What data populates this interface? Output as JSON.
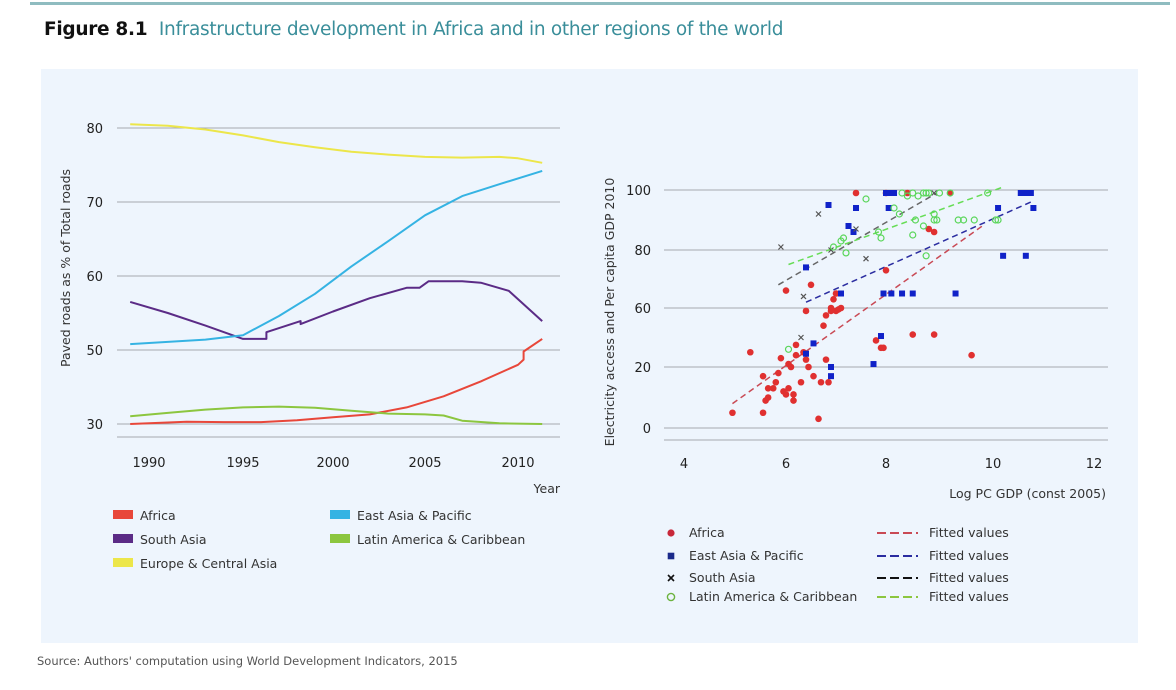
{
  "figure": {
    "number": "Figure 8.1",
    "title": "Infrastructure development in Africa and in other regions of the world",
    "source": "Source: Authors' computation using World Development Indicators, 2015"
  },
  "chart_data": [
    {
      "type": "line",
      "title": "",
      "xlabel": "Year",
      "ylabel": "Paved roads as % of Total roads",
      "xlim": [
        1989,
        2011.3
      ],
      "y_ticks": [
        30,
        50,
        60,
        70,
        80
      ],
      "x_ticks": [
        1990,
        1995,
        2000,
        2005,
        2010
      ],
      "x_tick_labels": [
        "1990",
        "1995",
        "2000",
        "2005",
        "2010"
      ],
      "y_tick_labels": [
        "30",
        "50",
        "60",
        "70",
        "80"
      ],
      "grid": true,
      "legend_position": "bottom",
      "series": [
        {
          "name": "Africa",
          "color": "#e8473a",
          "x": [
            1989,
            1990,
            1992,
            1994,
            1996,
            1998,
            2000,
            2002,
            2004,
            2006,
            2008,
            2010,
            2010.3,
            2010.3,
            2011.3
          ],
          "values": [
            30,
            30.2,
            30.6,
            30.5,
            30.5,
            31,
            31.8,
            32.6,
            34.5,
            37.5,
            41.5,
            46,
            47.4,
            49.6,
            51.5
          ]
        },
        {
          "name": "South Asia",
          "color": "#5b2b86",
          "x": [
            1989,
            1991,
            1993,
            1995,
            1996.3,
            1996.3,
            1998.2,
            1998.2,
            2000,
            2002,
            2004,
            2004.7,
            2005.2,
            2007,
            2008,
            2009.5,
            2011.3
          ],
          "values": [
            56.5,
            55,
            53.3,
            51.5,
            51.5,
            52.4,
            53.9,
            53.5,
            55.2,
            57,
            58.4,
            58.4,
            59.3,
            59.3,
            59.1,
            58,
            53.9
          ]
        },
        {
          "name": "Europe & Central Asia",
          "color": "#ece64a",
          "x": [
            1989,
            1991,
            1993,
            1995,
            1997,
            1999,
            2001,
            2003,
            2005,
            2007,
            2009,
            2010,
            2011.3
          ],
          "values": [
            80.5,
            80.3,
            79.8,
            79,
            78.1,
            77.4,
            76.8,
            76.4,
            76.1,
            76,
            76.1,
            75.9,
            75.3
          ]
        },
        {
          "name": "East Asia & Pacific",
          "color": "#35b3e3",
          "x": [
            1989,
            1991,
            1993,
            1995,
            1997,
            1999,
            2001,
            2003,
            2005,
            2007,
            2009,
            2011.3
          ],
          "values": [
            50.8,
            51.1,
            51.4,
            52,
            54.6,
            57.6,
            61.3,
            64.7,
            68.2,
            70.8,
            72.4,
            74.2
          ]
        },
        {
          "name": "Latin America & Caribbean",
          "color": "#8cc63f",
          "x": [
            1989,
            1991,
            1993,
            1995,
            1997,
            1999,
            2001,
            2003,
            2005,
            2006,
            2007,
            2009,
            2011.3
          ],
          "values": [
            32.1,
            33,
            33.9,
            34.5,
            34.7,
            34.4,
            33.6,
            32.8,
            32.6,
            32.3,
            30.9,
            30.2,
            30
          ]
        }
      ]
    },
    {
      "type": "scatter",
      "title": "",
      "xlabel": "Log PC GDP (const 2005)",
      "ylabel": "Electricity access and Per capita GDP 2010",
      "xlim": [
        3.6,
        12.3
      ],
      "x_ticks": [
        4,
        6,
        8,
        10,
        12
      ],
      "x_tick_labels": [
        "4",
        "6",
        "8",
        "10",
        "12"
      ],
      "y_ticks": [
        0,
        20,
        60,
        80,
        100
      ],
      "y_tick_labels": [
        "0",
        "20",
        "60",
        "80",
        "100"
      ],
      "grid": true,
      "legend_position": "bottom",
      "series": [
        {
          "name": "Africa",
          "marker": "circle",
          "color": "#e03030",
          "points": [
            [
              4.95,
              5
            ],
            [
              5.3,
              30
            ],
            [
              5.55,
              5
            ],
            [
              5.55,
              17
            ],
            [
              5.6,
              9
            ],
            [
              5.65,
              10
            ],
            [
              5.65,
              13
            ],
            [
              5.75,
              13
            ],
            [
              5.8,
              15
            ],
            [
              5.85,
              18
            ],
            [
              5.9,
              26
            ],
            [
              5.95,
              12
            ],
            [
              6.0,
              11
            ],
            [
              6.05,
              13
            ],
            [
              6.05,
              22
            ],
            [
              6.1,
              20
            ],
            [
              6.15,
              9
            ],
            [
              6.15,
              11
            ],
            [
              6.2,
              28
            ],
            [
              6.2,
              35
            ],
            [
              6.3,
              15
            ],
            [
              6.35,
              30
            ],
            [
              6.4,
              25
            ],
            [
              6.45,
              20
            ],
            [
              6.55,
              17
            ],
            [
              6.65,
              3
            ],
            [
              6.7,
              15
            ],
            [
              6.75,
              48
            ],
            [
              6.8,
              25
            ],
            [
              6.85,
              15
            ],
            [
              6.9,
              58
            ],
            [
              6.95,
              63
            ],
            [
              7.0,
              65
            ],
            [
              7.0,
              58
            ],
            [
              7.05,
              59
            ],
            [
              7.1,
              60
            ],
            [
              6.0,
              66
            ],
            [
              6.5,
              68
            ],
            [
              6.4,
              58
            ],
            [
              6.9,
              60
            ],
            [
              6.8,
              55
            ],
            [
              7.4,
              99
            ],
            [
              8.0,
              99
            ],
            [
              8.0,
              73
            ],
            [
              8.4,
              99
            ],
            [
              8.8,
              87
            ],
            [
              8.9,
              86
            ],
            [
              9.2,
              99
            ],
            [
              7.8,
              38
            ],
            [
              7.9,
              33
            ],
            [
              7.95,
              33
            ],
            [
              8.5,
              42
            ],
            [
              8.9,
              42
            ],
            [
              9.6,
              28
            ]
          ]
        },
        {
          "name": "East Asia & Pacific",
          "marker": "square",
          "color": "#1022c8",
          "points": [
            [
              6.4,
              74
            ],
            [
              6.4,
              29
            ],
            [
              6.55,
              36
            ],
            [
              6.85,
              95
            ],
            [
              6.9,
              20
            ],
            [
              6.9,
              17
            ],
            [
              7.1,
              65
            ],
            [
              7.25,
              88
            ],
            [
              7.35,
              86
            ],
            [
              7.4,
              94
            ],
            [
              7.95,
              65
            ],
            [
              8.0,
              99
            ],
            [
              8.05,
              99
            ],
            [
              8.1,
              99
            ],
            [
              8.15,
              99
            ],
            [
              8.05,
              94
            ],
            [
              8.3,
              65
            ],
            [
              8.5,
              65
            ],
            [
              8.1,
              65
            ],
            [
              9.3,
              65
            ],
            [
              7.75,
              22
            ],
            [
              7.9,
              41
            ],
            [
              10.1,
              94
            ],
            [
              10.2,
              78
            ],
            [
              10.55,
              99
            ],
            [
              10.65,
              99
            ],
            [
              10.75,
              99
            ],
            [
              10.8,
              94
            ],
            [
              10.65,
              78
            ]
          ]
        },
        {
          "name": "South Asia",
          "marker": "x",
          "color": "#555555",
          "points": [
            [
              5.9,
              81
            ],
            [
              6.3,
              40
            ],
            [
              6.35,
              64
            ],
            [
              6.65,
              92
            ],
            [
              6.9,
              80
            ],
            [
              7.4,
              87
            ],
            [
              7.6,
              77
            ],
            [
              8.9,
              99
            ]
          ]
        },
        {
          "name": "Latin America & Caribbean",
          "marker": "circle-open",
          "color": "#5ad65a",
          "points": [
            [
              6.05,
              32
            ],
            [
              6.95,
              81
            ],
            [
              7.1,
              83
            ],
            [
              7.15,
              84
            ],
            [
              7.2,
              79
            ],
            [
              7.6,
              97
            ],
            [
              7.85,
              86
            ],
            [
              7.9,
              84
            ],
            [
              8.3,
              99
            ],
            [
              8.4,
              98
            ],
            [
              8.5,
              99
            ],
            [
              8.55,
              90
            ],
            [
              8.6,
              98
            ],
            [
              8.7,
              99
            ],
            [
              8.75,
              99
            ],
            [
              8.8,
              99
            ],
            [
              8.9,
              90
            ],
            [
              8.95,
              90
            ],
            [
              8.7,
              88
            ],
            [
              8.9,
              92
            ],
            [
              8.5,
              85
            ],
            [
              8.25,
              92
            ],
            [
              8.15,
              94
            ],
            [
              9.0,
              99
            ],
            [
              9.2,
              99
            ],
            [
              9.35,
              90
            ],
            [
              9.45,
              90
            ],
            [
              9.65,
              90
            ],
            [
              9.9,
              99
            ],
            [
              10.05,
              90
            ],
            [
              10.1,
              90
            ],
            [
              8.75,
              78
            ]
          ]
        }
      ],
      "fitted_lines": [
        {
          "name": "Fitted values",
          "group": "Africa",
          "color": "#c94a55",
          "x": [
            4.95,
            9.8
          ],
          "values": [
            8,
            88
          ]
        },
        {
          "name": "Fitted values",
          "group": "East Asia & Pacific",
          "color": "#2a2ca0",
          "x": [
            6.4,
            10.75
          ],
          "values": [
            62,
            96
          ]
        },
        {
          "name": "Fitted values",
          "group": "South Asia",
          "color": "#666666",
          "x": [
            5.85,
            8.95
          ],
          "values": [
            68,
            99
          ]
        },
        {
          "name": "Fitted values",
          "group": "Latin America & Caribbean",
          "color": "#66dd55",
          "x": [
            6.05,
            10.2
          ],
          "values": [
            75,
            101
          ]
        }
      ]
    }
  ],
  "legend_left": [
    {
      "label": "Africa",
      "color": "#e8473a"
    },
    {
      "label": "South Asia",
      "color": "#5b2b86"
    },
    {
      "label": "Europe & Central Asia",
      "color": "#ece64a"
    },
    {
      "label": "East Asia & Pacific",
      "color": "#35b3e3"
    },
    {
      "label": "Latin America & Caribbean",
      "color": "#8cc63f"
    }
  ],
  "legend_right": [
    {
      "label": "Africa",
      "marker": "circle",
      "color": "#c8283a",
      "fit_label": "Fitted values",
      "fit_color": "#c94a55"
    },
    {
      "label": "East Asia & Pacific",
      "marker": "square",
      "color": "#1a2a8a",
      "fit_label": "Fitted values",
      "fit_color": "#2a2ca0"
    },
    {
      "label": "South Asia",
      "marker": "x",
      "color": "#111111",
      "fit_label": "Fitted values",
      "fit_color": "#111111"
    },
    {
      "label": "Latin America & Caribbean",
      "marker": "circle-open",
      "color": "#6cb33f",
      "fit_label": "Fitted values",
      "fit_color": "#8cc63f"
    }
  ]
}
